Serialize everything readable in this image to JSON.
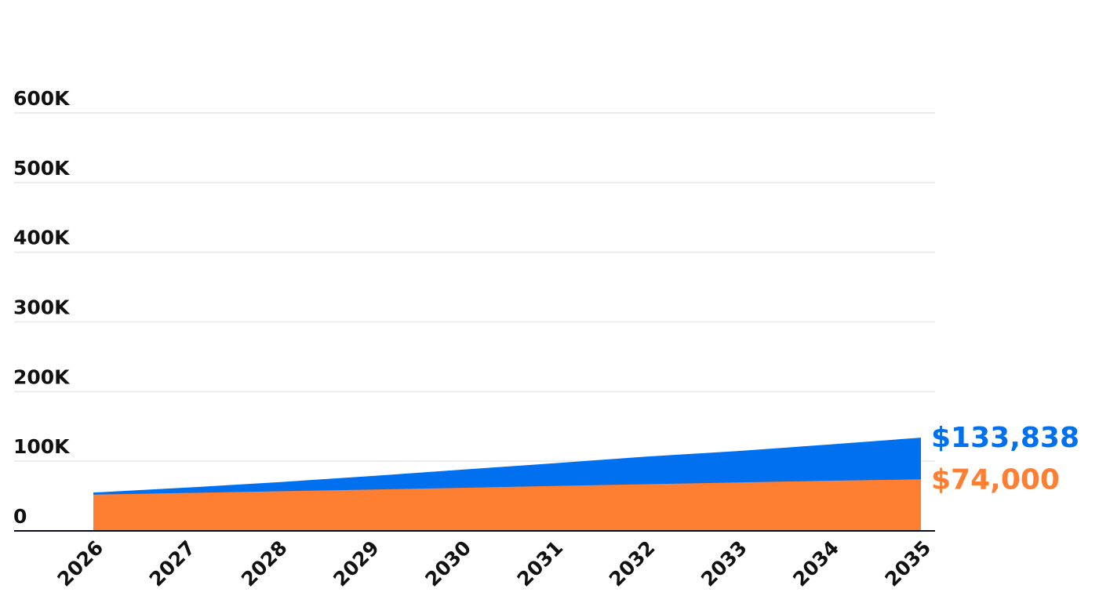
{
  "chart_data": {
    "type": "area",
    "x": [
      "2026",
      "2027",
      "2028",
      "2029",
      "2030",
      "2031",
      "2032",
      "2033",
      "2034",
      "2035"
    ],
    "ylim": [
      0,
      600000
    ],
    "y_ticks": [
      {
        "value": 0,
        "label": "0"
      },
      {
        "value": 100000,
        "label": "100K"
      },
      {
        "value": 200000,
        "label": "200K"
      },
      {
        "value": 300000,
        "label": "300K"
      },
      {
        "value": 400000,
        "label": "400K"
      },
      {
        "value": 500000,
        "label": "500K"
      },
      {
        "value": 600000,
        "label": "600K"
      }
    ],
    "grid": true,
    "series": [
      {
        "color": "#0070ee",
        "values": [
          55000,
          62000,
          69800,
          78500,
          87800,
          97000,
          106500,
          114500,
          124000,
          133838
        ],
        "end_label": "$133,838"
      },
      {
        "color": "#ff7f32",
        "values": [
          52000,
          54400,
          56800,
          59300,
          61800,
          64400,
          67000,
          69500,
          72000,
          74000
        ],
        "end_label": "$74,000"
      }
    ]
  }
}
